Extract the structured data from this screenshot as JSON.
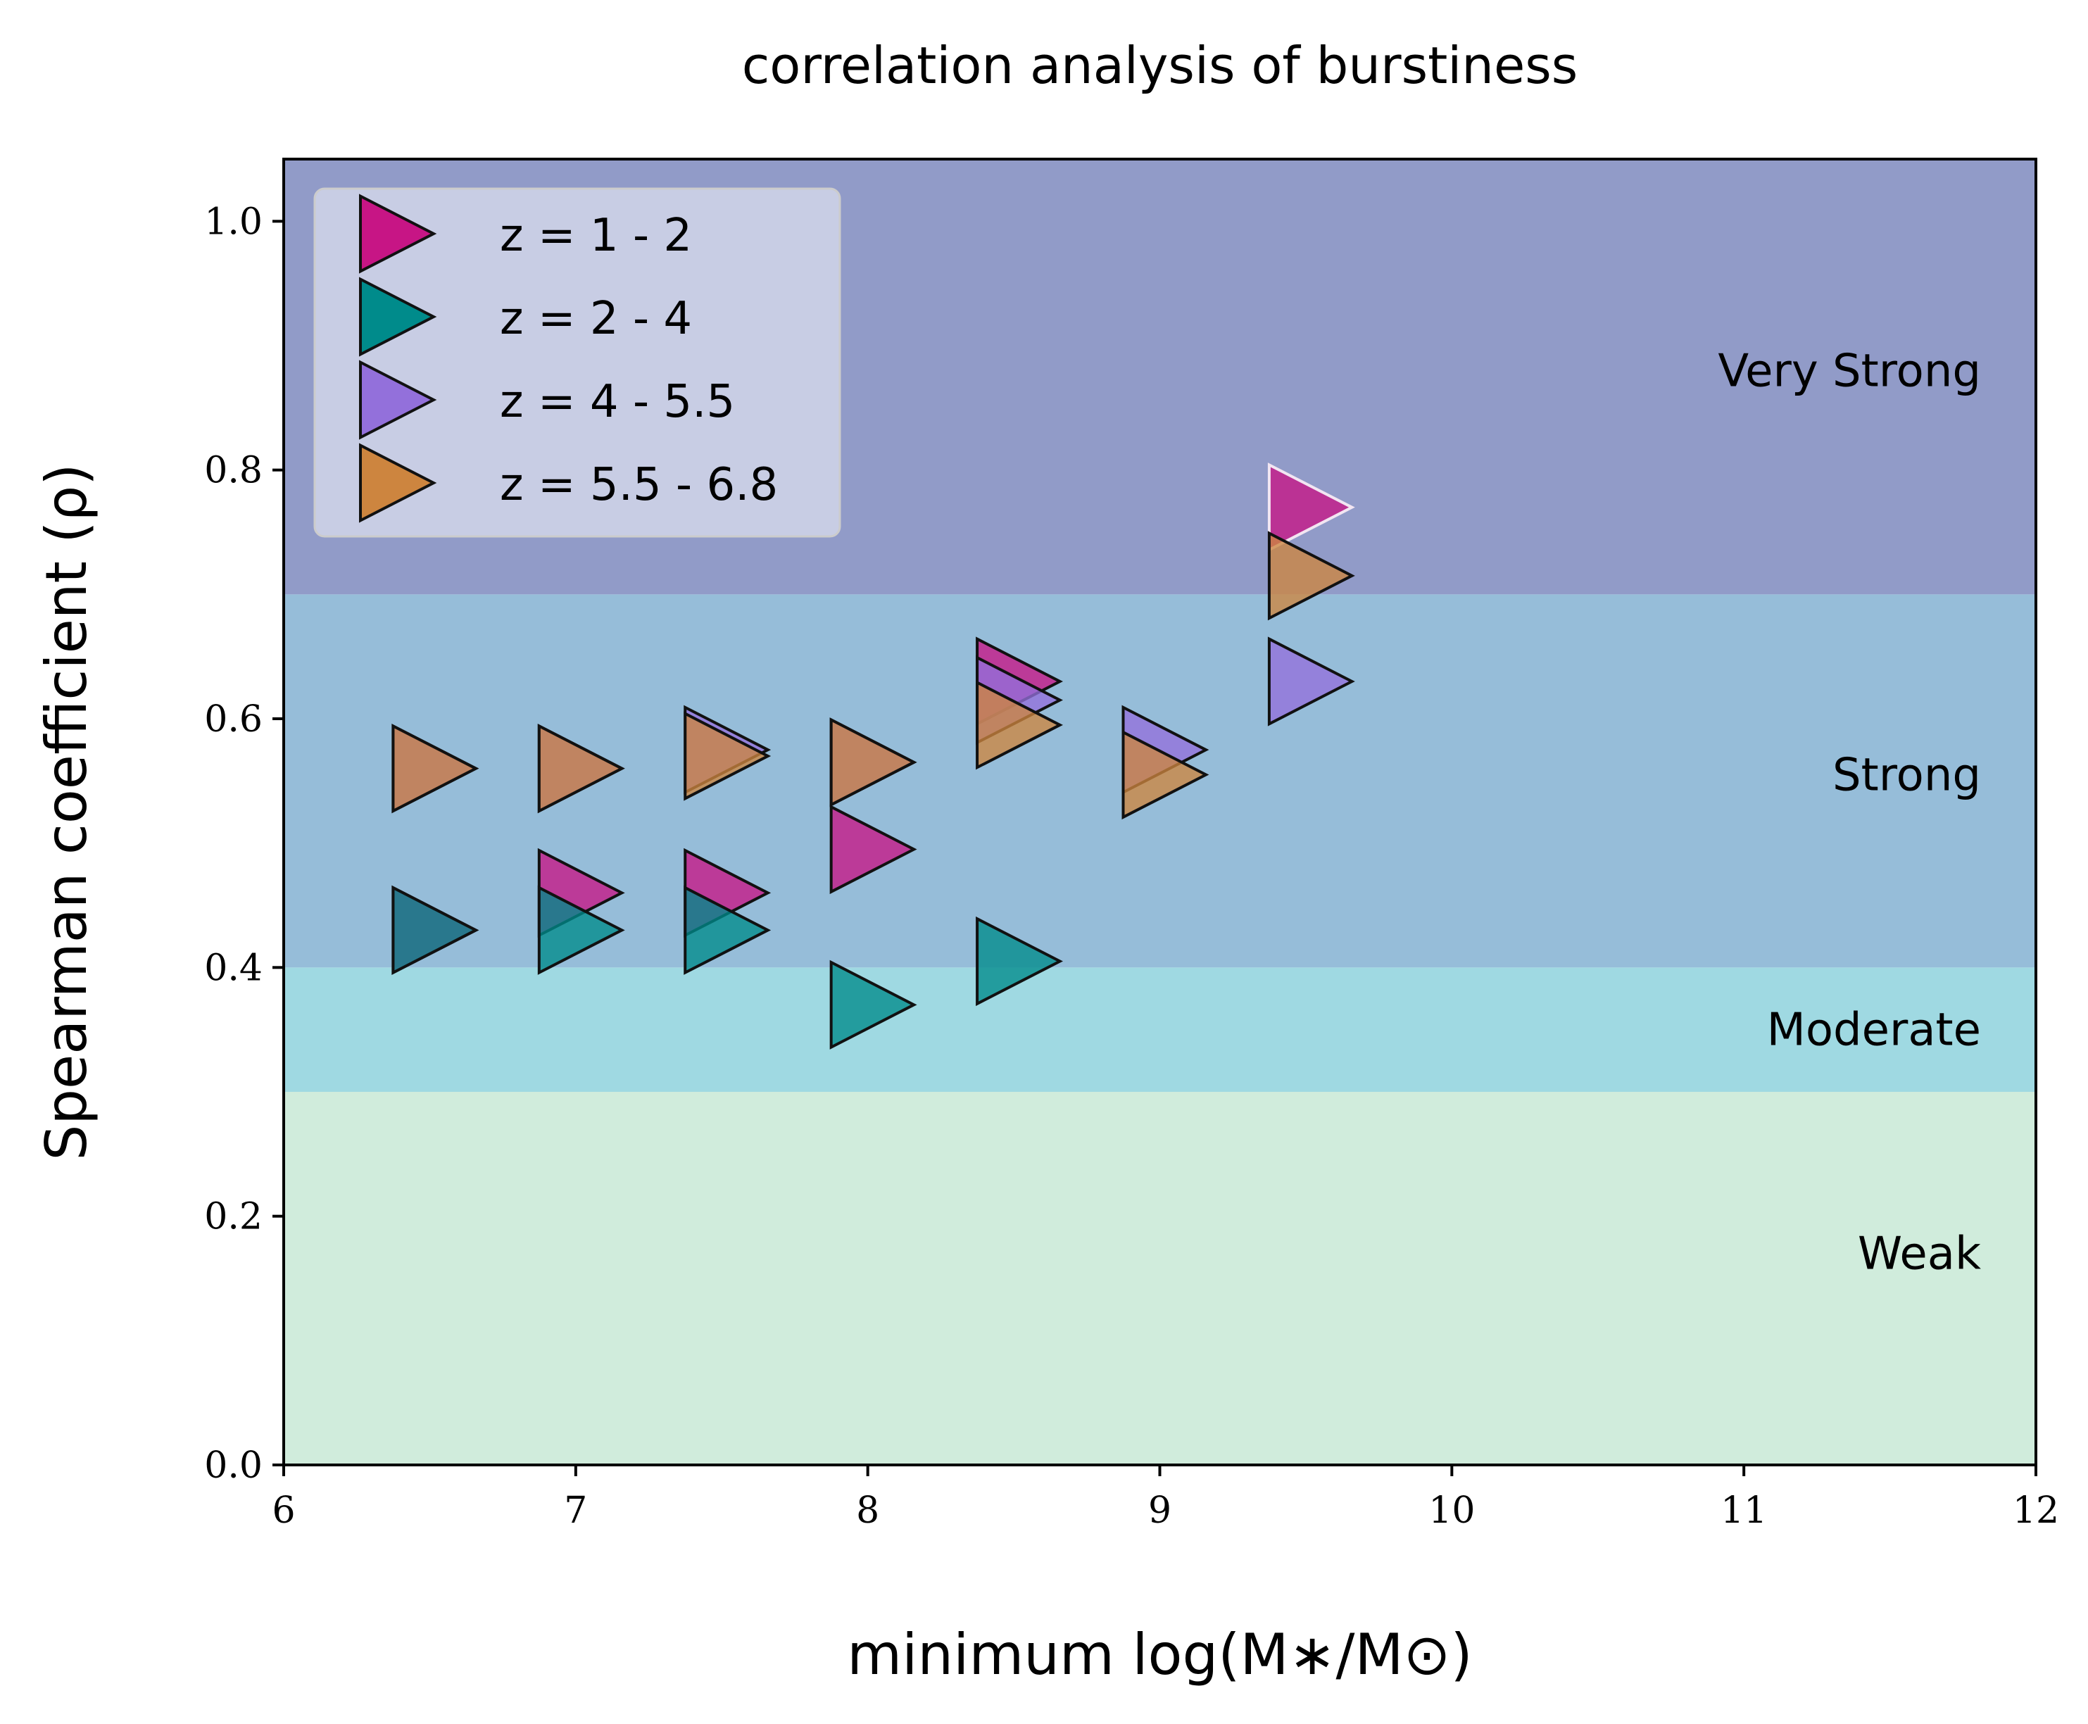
{
  "chart_data": {
    "type": "scatter",
    "title": "correlation analysis of burstiness",
    "xlabel": "minimum log(M∗/M⊙)",
    "ylabel": "Spearman coefficient (ρ)",
    "xlim": [
      6,
      12
    ],
    "ylim": [
      0,
      1.05
    ],
    "xticks": [
      "6",
      "7",
      "8",
      "9",
      "10",
      "11",
      "12"
    ],
    "yticks": [
      "0.0",
      "0.2",
      "0.4",
      "0.6",
      "0.8",
      "1.0"
    ],
    "marker": "triangle-right",
    "legend_position": "top-left",
    "bands": [
      {
        "label": "Weak",
        "from": 0.0,
        "to": 0.3,
        "color": "#d0ecdc"
      },
      {
        "label": "Moderate",
        "from": 0.3,
        "to": 0.4,
        "color": "#9fd9e2"
      },
      {
        "label": "Strong",
        "from": 0.4,
        "to": 0.7,
        "color": "#96bdd9"
      },
      {
        "label": "Very Strong",
        "from": 0.7,
        "to": 1.05,
        "color": "#919bc8"
      }
    ],
    "series": [
      {
        "name": "z = 1 - 2",
        "color": "#c71585",
        "x": [
          6.5,
          7.0,
          7.5,
          8.0,
          8.5,
          9.5
        ],
        "y": [
          0.43,
          0.46,
          0.46,
          0.495,
          0.63,
          0.77
        ]
      },
      {
        "name": "z = 2 - 4",
        "color": "#008b8b",
        "x": [
          6.5,
          7.0,
          7.5,
          8.0,
          8.5
        ],
        "y": [
          0.43,
          0.43,
          0.43,
          0.37,
          0.405
        ]
      },
      {
        "name": "z = 4 - 5.5",
        "color": "#9370db",
        "x": [
          6.5,
          7.0,
          7.5,
          8.0,
          8.5,
          9.0,
          9.5
        ],
        "y": [
          0.56,
          0.56,
          0.575,
          0.565,
          0.615,
          0.575,
          0.63
        ]
      },
      {
        "name": "z = 5.5 - 6.8",
        "color": "#cd853f",
        "x": [
          6.5,
          7.0,
          7.5,
          8.0,
          8.5,
          9.0,
          9.5
        ],
        "y": [
          0.56,
          0.56,
          0.57,
          0.565,
          0.595,
          0.555,
          0.715
        ]
      }
    ]
  }
}
